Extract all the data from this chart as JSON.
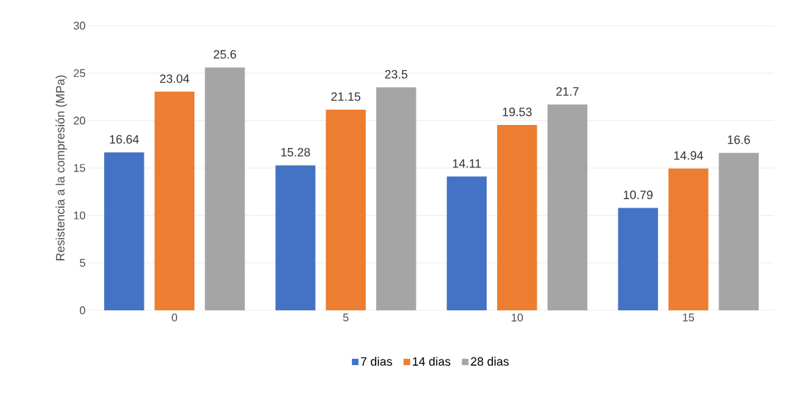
{
  "chart_data": {
    "type": "bar",
    "ylabel": "Resistencia a la compresión (MPa)",
    "categories": [
      "0",
      "5",
      "10",
      "15"
    ],
    "series": [
      {
        "name": "7 dias",
        "color": "#4472c4",
        "values": [
          16.64,
          15.28,
          14.11,
          10.79
        ]
      },
      {
        "name": "14 dias",
        "color": "#ed7d31",
        "values": [
          23.04,
          21.15,
          19.53,
          14.94
        ]
      },
      {
        "name": "28 dias",
        "color": "#a5a5a5",
        "values": [
          25.6,
          23.5,
          21.7,
          16.6
        ]
      }
    ],
    "ylim": [
      0,
      30
    ],
    "yticks": [
      0,
      5,
      10,
      15,
      20,
      25,
      30
    ],
    "grid": "y",
    "legend": "bottom",
    "data_labels": true
  }
}
